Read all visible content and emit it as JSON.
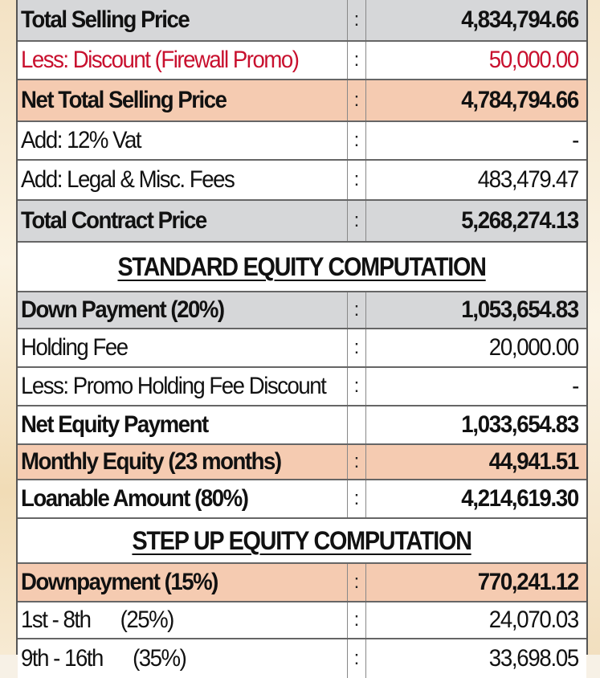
{
  "price_rows": [
    {
      "label": "Total Selling Price",
      "colon": ":",
      "value": "4,834,794.66"
    },
    {
      "label": "Less: Discount (Firewall Promo)",
      "colon": ":",
      "value": "50,000.00"
    },
    {
      "label": "Net Total Selling Price",
      "colon": ":",
      "value": "4,784,794.66"
    },
    {
      "label": "Add: 12% Vat",
      "colon": ":",
      "value": "-"
    },
    {
      "label": "Add: Legal & Misc. Fees",
      "colon": ":",
      "value": "483,479.47"
    },
    {
      "label": "Total Contract Price",
      "colon": ":",
      "value": "5,268,274.13"
    }
  ],
  "standard_equity": {
    "heading": "STANDARD EQUITY COMPUTATION",
    "rows": [
      {
        "label": "Down Payment (20%)",
        "colon": ":",
        "value": "1,053,654.83"
      },
      {
        "label": "Holding Fee",
        "colon": ":",
        "value": "20,000.00"
      },
      {
        "label": "Less: Promo Holding Fee Discount",
        "colon": ":",
        "value": "-"
      },
      {
        "label": "Net Equity Payment",
        "colon": "",
        "value": "1,033,654.83"
      },
      {
        "label": "Monthly Equity (23 months)",
        "colon": ":",
        "value": "44,941.51"
      },
      {
        "label": "Loanable Amount (80%)",
        "colon": ":",
        "value": "4,214,619.30"
      }
    ]
  },
  "step_up_equity": {
    "heading": "STEP UP EQUITY COMPUTATION",
    "rows": [
      {
        "label": "Downpayment (15%)",
        "colon": ":",
        "value": "770,241.12"
      },
      {
        "label": "1st - 8th      (25%)",
        "colon": ":",
        "value": "24,070.03"
      },
      {
        "label": "9th - 16th      (35%)",
        "colon": ":",
        "value": "33,698.05"
      }
    ]
  },
  "colors": {
    "gray_row": "#d6d7d9",
    "peach_row": "#f5cbb1",
    "discount_red": "#c8102e"
  }
}
